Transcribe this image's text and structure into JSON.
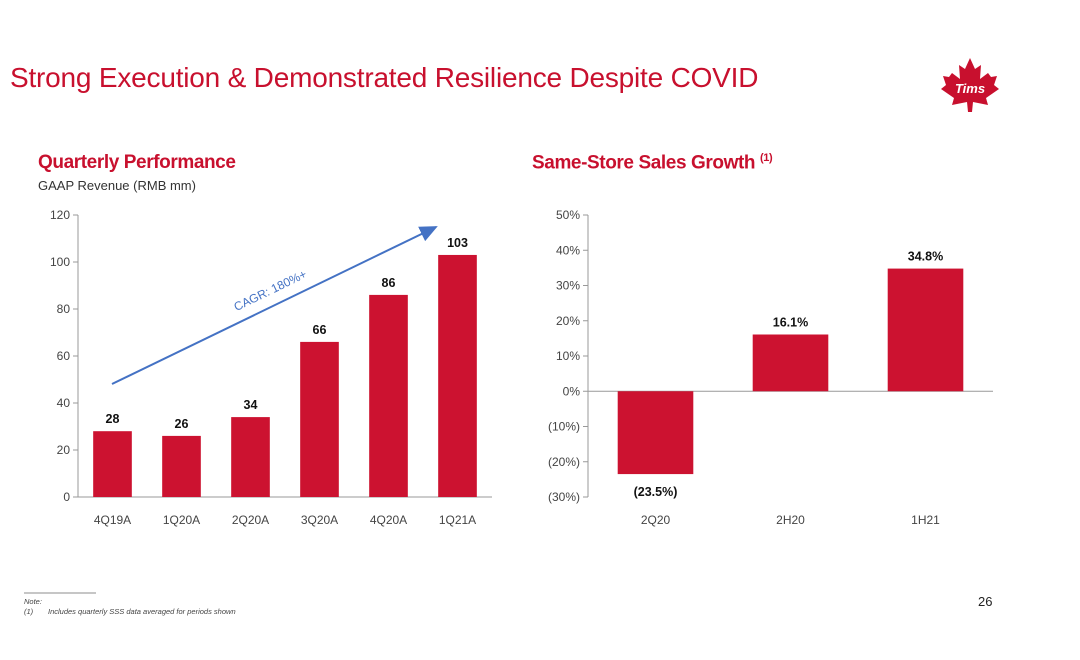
{
  "title": "Strong Execution & Demonstrated Resilience Despite COVID",
  "logo_text": "Tims",
  "page_number": "26",
  "notes": {
    "label": "Note:",
    "marker": "(1)",
    "text": "Includes quarterly SSS data averaged for periods shown"
  },
  "colors": {
    "brand": "#c8102e",
    "bar": "#cc1230",
    "arrow": "#4472c4"
  },
  "chart_data": [
    {
      "type": "bar",
      "title": "Quarterly Performance",
      "subtitle": "GAAP Revenue (RMB mm)",
      "categories": [
        "4Q19A",
        "1Q20A",
        "2Q20A",
        "3Q20A",
        "4Q20A",
        "1Q21A"
      ],
      "values": [
        28,
        26,
        34,
        66,
        86,
        103
      ],
      "value_labels": [
        "28",
        "26",
        "34",
        "66",
        "86",
        "103"
      ],
      "ylim": [
        0,
        120
      ],
      "yticks": [
        0,
        20,
        40,
        60,
        80,
        100,
        120
      ],
      "ytick_labels": [
        "0",
        "20",
        "40",
        "60",
        "80",
        "100",
        "120"
      ],
      "grid": false,
      "annotation": {
        "text": "CAGR: 180%+",
        "style": "arrow"
      }
    },
    {
      "type": "bar",
      "title": "Same-Store Sales Growth",
      "title_sup": "(1)",
      "categories": [
        "2Q20",
        "2H20",
        "1H21"
      ],
      "values": [
        -23.5,
        16.1,
        34.8
      ],
      "value_labels": [
        "(23.5%)",
        "16.1%",
        "34.8%"
      ],
      "ylim": [
        -30,
        50
      ],
      "yticks": [
        -30,
        -20,
        -10,
        0,
        10,
        20,
        30,
        40,
        50
      ],
      "ytick_labels": [
        "(30%)",
        "(20%)",
        "(10%)",
        "0%",
        "10%",
        "20%",
        "30%",
        "40%",
        "50%"
      ],
      "grid": false
    }
  ]
}
